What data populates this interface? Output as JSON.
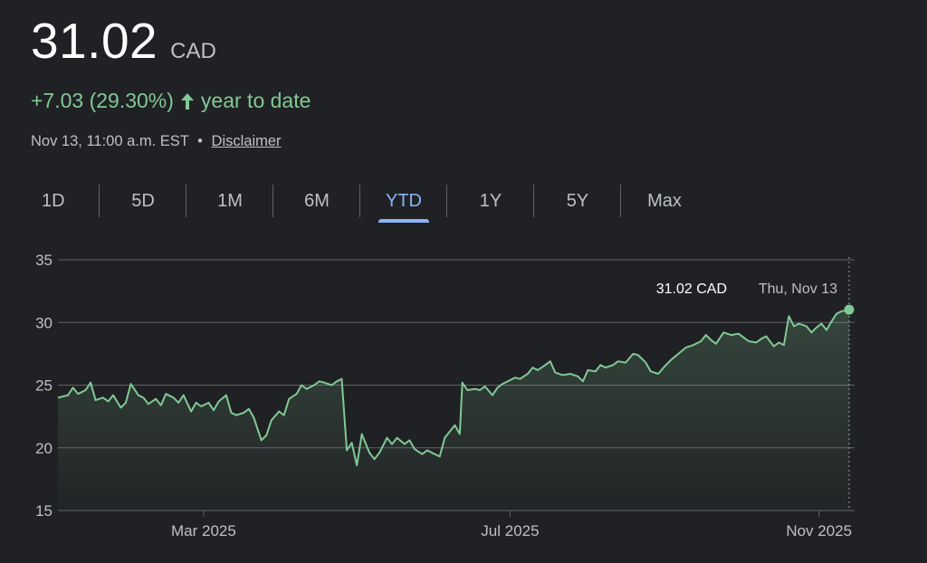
{
  "quote": {
    "price": "31.02",
    "currency": "CAD",
    "change": "+7.03 (29.30%)",
    "period_label": "year to date",
    "timestamp": "Nov 13, 11:00 a.m. EST",
    "separator": "•",
    "disclaimer": "Disclaimer"
  },
  "tabs": [
    {
      "label": "1D",
      "active": false
    },
    {
      "label": "5D",
      "active": false
    },
    {
      "label": "1M",
      "active": false
    },
    {
      "label": "6M",
      "active": false
    },
    {
      "label": "YTD",
      "active": true
    },
    {
      "label": "1Y",
      "active": false
    },
    {
      "label": "5Y",
      "active": false
    },
    {
      "label": "Max",
      "active": false
    }
  ],
  "colors": {
    "line": "#81c995",
    "grid": "#5f6368",
    "active_tab": "#8ab4f8",
    "background": "#202124"
  },
  "icons": {
    "change_direction": "up-arrow-icon"
  },
  "chart_data": {
    "type": "area",
    "title": "",
    "xlabel": "",
    "ylabel": "",
    "ylim": [
      15,
      35
    ],
    "yticks": [
      15,
      20,
      25,
      30,
      35
    ],
    "xlim": [
      "2025-01-02",
      "2025-11-13"
    ],
    "xticks": [
      {
        "label": "Mar 2025",
        "date": "2025-03-01"
      },
      {
        "label": "Jul 2025",
        "date": "2025-07-01"
      },
      {
        "label": "Nov 2025",
        "date": "2025-11-01"
      }
    ],
    "grid": true,
    "tooltip": {
      "price": "31.02 CAD",
      "date": "Thu, Nov 13"
    },
    "series": [
      {
        "points": [
          [
            "2025-01-02",
            24.0
          ],
          [
            "2025-01-06",
            24.2
          ],
          [
            "2025-01-08",
            24.8
          ],
          [
            "2025-01-10",
            24.3
          ],
          [
            "2025-01-13",
            24.6
          ],
          [
            "2025-01-15",
            25.2
          ],
          [
            "2025-01-17",
            23.8
          ],
          [
            "2025-01-20",
            24.0
          ],
          [
            "2025-01-22",
            23.7
          ],
          [
            "2025-01-24",
            24.2
          ],
          [
            "2025-01-27",
            23.2
          ],
          [
            "2025-01-29",
            23.6
          ],
          [
            "2025-01-31",
            25.1
          ],
          [
            "2025-02-03",
            24.2
          ],
          [
            "2025-02-05",
            24.0
          ],
          [
            "2025-02-07",
            23.5
          ],
          [
            "2025-02-10",
            23.9
          ],
          [
            "2025-02-12",
            23.4
          ],
          [
            "2025-02-14",
            24.3
          ],
          [
            "2025-02-17",
            24.0
          ],
          [
            "2025-02-19",
            23.6
          ],
          [
            "2025-02-21",
            24.2
          ],
          [
            "2025-02-24",
            22.9
          ],
          [
            "2025-02-26",
            23.6
          ],
          [
            "2025-02-28",
            23.3
          ],
          [
            "2025-03-03",
            23.6
          ],
          [
            "2025-03-05",
            23.0
          ],
          [
            "2025-03-07",
            23.7
          ],
          [
            "2025-03-10",
            24.2
          ],
          [
            "2025-03-12",
            22.8
          ],
          [
            "2025-03-14",
            22.6
          ],
          [
            "2025-03-17",
            22.8
          ],
          [
            "2025-03-19",
            23.1
          ],
          [
            "2025-03-21",
            22.4
          ],
          [
            "2025-03-24",
            20.6
          ],
          [
            "2025-03-26",
            21.0
          ],
          [
            "2025-03-28",
            22.2
          ],
          [
            "2025-03-31",
            22.9
          ],
          [
            "2025-04-02",
            22.6
          ],
          [
            "2025-04-04",
            23.9
          ],
          [
            "2025-04-07",
            24.3
          ],
          [
            "2025-04-09",
            25.0
          ],
          [
            "2025-04-11",
            24.7
          ],
          [
            "2025-04-14",
            25.0
          ],
          [
            "2025-04-16",
            25.3
          ],
          [
            "2025-04-18",
            25.2
          ],
          [
            "2025-04-21",
            25.0
          ],
          [
            "2025-04-23",
            25.3
          ],
          [
            "2025-04-25",
            25.5
          ],
          [
            "2025-04-27",
            19.8
          ],
          [
            "2025-04-29",
            20.4
          ],
          [
            "2025-05-01",
            18.6
          ],
          [
            "2025-05-03",
            21.1
          ],
          [
            "2025-05-06",
            19.6
          ],
          [
            "2025-05-08",
            19.1
          ],
          [
            "2025-05-10",
            19.6
          ],
          [
            "2025-05-13",
            20.8
          ],
          [
            "2025-05-15",
            20.3
          ],
          [
            "2025-05-17",
            20.8
          ],
          [
            "2025-05-20",
            20.3
          ],
          [
            "2025-05-22",
            20.6
          ],
          [
            "2025-05-24",
            19.9
          ],
          [
            "2025-05-27",
            19.5
          ],
          [
            "2025-05-29",
            19.8
          ],
          [
            "2025-05-31",
            19.6
          ],
          [
            "2025-06-03",
            19.3
          ],
          [
            "2025-06-05",
            20.8
          ],
          [
            "2025-06-07",
            21.3
          ],
          [
            "2025-06-09",
            21.8
          ],
          [
            "2025-06-11",
            21.1
          ],
          [
            "2025-06-12",
            25.2
          ],
          [
            "2025-06-14",
            24.6
          ],
          [
            "2025-06-17",
            24.7
          ],
          [
            "2025-06-19",
            24.6
          ],
          [
            "2025-06-21",
            24.9
          ],
          [
            "2025-06-24",
            24.2
          ],
          [
            "2025-06-26",
            24.8
          ],
          [
            "2025-06-28",
            25.1
          ],
          [
            "2025-07-01",
            25.4
          ],
          [
            "2025-07-03",
            25.6
          ],
          [
            "2025-07-05",
            25.5
          ],
          [
            "2025-07-08",
            25.9
          ],
          [
            "2025-07-10",
            26.4
          ],
          [
            "2025-07-12",
            26.2
          ],
          [
            "2025-07-15",
            26.6
          ],
          [
            "2025-07-17",
            26.9
          ],
          [
            "2025-07-19",
            26.0
          ],
          [
            "2025-07-22",
            25.8
          ],
          [
            "2025-07-25",
            25.9
          ],
          [
            "2025-07-28",
            25.7
          ],
          [
            "2025-07-30",
            25.3
          ],
          [
            "2025-08-01",
            26.2
          ],
          [
            "2025-08-04",
            26.1
          ],
          [
            "2025-08-06",
            26.6
          ],
          [
            "2025-08-08",
            26.4
          ],
          [
            "2025-08-11",
            26.6
          ],
          [
            "2025-08-13",
            26.9
          ],
          [
            "2025-08-16",
            26.8
          ],
          [
            "2025-08-19",
            27.5
          ],
          [
            "2025-08-21",
            27.4
          ],
          [
            "2025-08-24",
            26.8
          ],
          [
            "2025-08-26",
            26.1
          ],
          [
            "2025-08-29",
            25.9
          ],
          [
            "2025-09-01",
            26.6
          ],
          [
            "2025-09-03",
            27.0
          ],
          [
            "2025-09-06",
            27.5
          ],
          [
            "2025-09-09",
            28.0
          ],
          [
            "2025-09-12",
            28.2
          ],
          [
            "2025-09-15",
            28.5
          ],
          [
            "2025-09-17",
            29.0
          ],
          [
            "2025-09-19",
            28.6
          ],
          [
            "2025-09-21",
            28.3
          ],
          [
            "2025-09-24",
            29.2
          ],
          [
            "2025-09-27",
            29.0
          ],
          [
            "2025-09-30",
            29.1
          ],
          [
            "2025-10-02",
            28.8
          ],
          [
            "2025-10-04",
            28.5
          ],
          [
            "2025-10-07",
            28.4
          ],
          [
            "2025-10-09",
            28.7
          ],
          [
            "2025-10-11",
            28.9
          ],
          [
            "2025-10-14",
            28.1
          ],
          [
            "2025-10-16",
            28.4
          ],
          [
            "2025-10-18",
            28.2
          ],
          [
            "2025-10-20",
            30.5
          ],
          [
            "2025-10-22",
            29.7
          ],
          [
            "2025-10-24",
            29.9
          ],
          [
            "2025-10-27",
            29.7
          ],
          [
            "2025-10-29",
            29.2
          ],
          [
            "2025-10-31",
            29.6
          ],
          [
            "2025-11-02",
            29.9
          ],
          [
            "2025-11-04",
            29.4
          ],
          [
            "2025-11-06",
            30.1
          ],
          [
            "2025-11-08",
            30.7
          ],
          [
            "2025-11-10",
            30.9
          ],
          [
            "2025-11-13",
            31.02
          ]
        ]
      }
    ]
  }
}
